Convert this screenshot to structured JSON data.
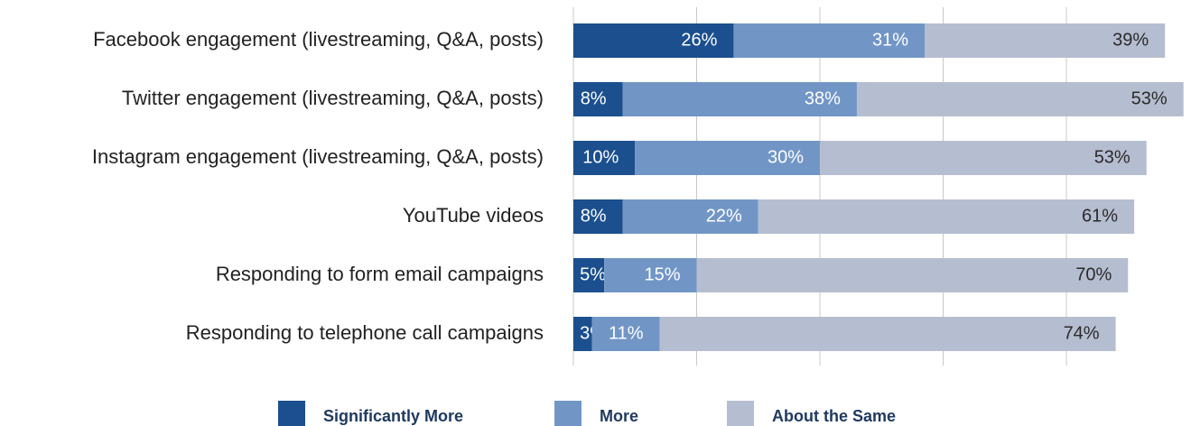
{
  "chart_data": {
    "type": "stacked_bar_horizontal",
    "categories": [
      "Facebook engagement (livestreaming, Q&A, posts)",
      "Twitter engagement (livestreaming, Q&A, posts)",
      "Instagram engagement (livestreaming, Q&A, posts)",
      "YouTube videos",
      "Responding to form email campaigns",
      "Responding to telephone call campaigns"
    ],
    "series": [
      {
        "name": "Significantly More",
        "color": "#1b4f8e",
        "values": [
          26,
          8,
          10,
          8,
          5,
          3
        ],
        "value_labels": [
          "26%",
          "8%",
          "10%",
          "8%",
          "5%",
          "3%"
        ]
      },
      {
        "name": "More",
        "color": "#7196c6",
        "values": [
          31,
          38,
          30,
          22,
          15,
          11
        ],
        "value_labels": [
          "31%",
          "38%",
          "30%",
          "22%",
          "15%",
          "11%"
        ]
      },
      {
        "name": "About the Same",
        "color": "#b5bdd0",
        "values": [
          39,
          53,
          53,
          61,
          70,
          74
        ],
        "value_labels": [
          "39%",
          "53%",
          "53%",
          "61%",
          "70%",
          "74%"
        ]
      }
    ],
    "xlim": [
      0,
      100
    ],
    "xticks": [
      0,
      20,
      40,
      60,
      80
    ],
    "grid": true,
    "legend": "bottom"
  }
}
